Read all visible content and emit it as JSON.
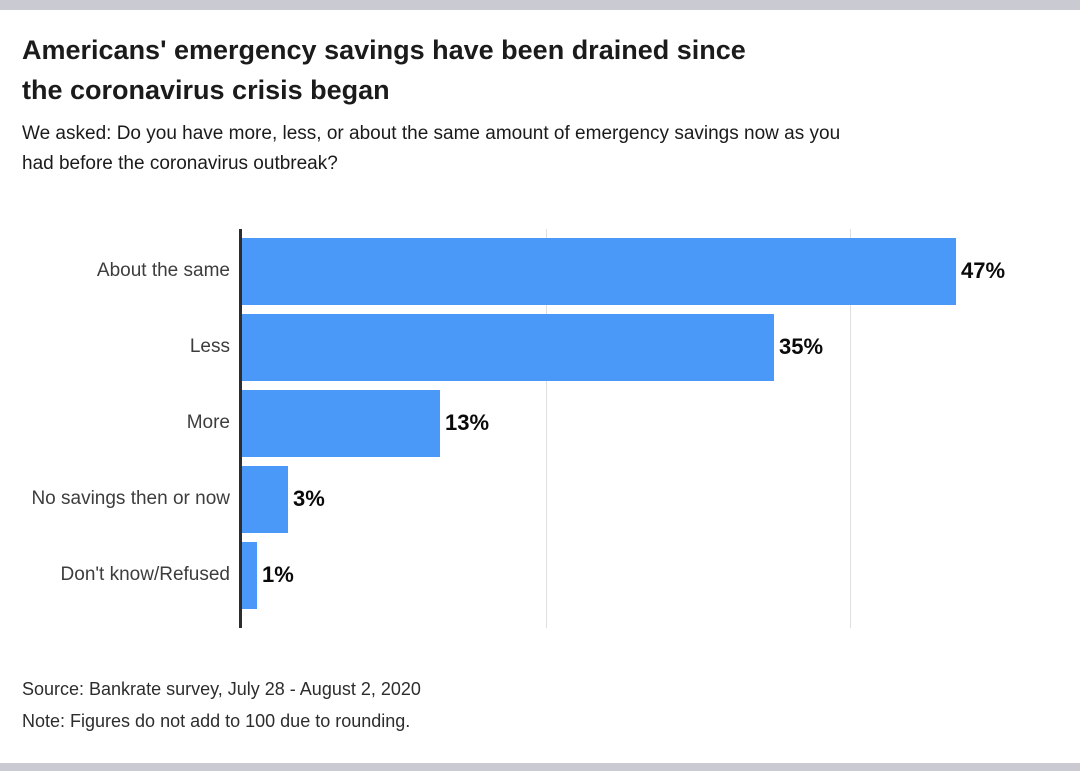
{
  "header": {
    "title": "Americans' emergency savings have been drained since the coronavirus crisis began",
    "title_lines": [
      "Americans' emergency savings have been drained since",
      "the coronavirus crisis began"
    ],
    "subtitle": "We asked: Do you have more, less, or about the same amount of emergency savings now as you had before the coronavirus outbreak?",
    "subtitle_lines": [
      "We asked: Do you have more, less, or about the same amount of emergency savings now as you",
      "had before the coronavirus outbreak?"
    ]
  },
  "chart_data": {
    "type": "bar",
    "orientation": "horizontal",
    "title": "Americans' emergency savings have been drained since the coronavirus crisis began",
    "subtitle": "We asked: Do you have more, less, or about the same amount of emergency savings now as you had before the coronavirus outbreak?",
    "categories": [
      "About the same",
      "Less",
      "More",
      "No savings then or now",
      "Don't know/Refused"
    ],
    "values": [
      47,
      35,
      13,
      3,
      1
    ],
    "value_labels": [
      "47%",
      "35%",
      "13%",
      "3%",
      "1%"
    ],
    "xlabel": "",
    "ylabel": "",
    "xlim": [
      0,
      55
    ],
    "gridlines_at": [
      20,
      40
    ],
    "grid": "vertical-only",
    "legend": "none",
    "bar_color": "#4a99f8",
    "axis_color": "#2d2d2d",
    "gridline_color": "#dfdfdf"
  },
  "footer": {
    "source": "Source: Bankrate survey, July 28 - August 2, 2020",
    "note": "Note: Figures do not add to 100 due to rounding."
  },
  "colors": {
    "background": "#ffffff",
    "border_strip": "#c9cad2",
    "title_text": "#1b1b1b",
    "category_text": "#3d3d3d",
    "value_text": "#0a0a0a",
    "footer_text": "#2d2d2d"
  }
}
